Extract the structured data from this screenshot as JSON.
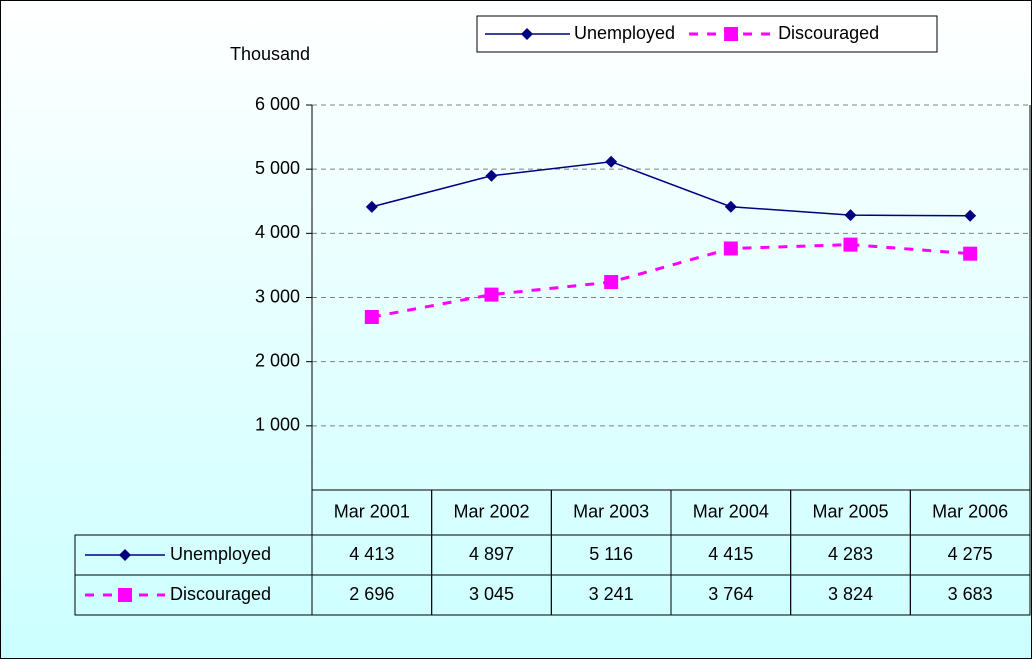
{
  "chart_data": {
    "type": "line",
    "y_label": "Thousand",
    "categories": [
      "Mar 2001",
      "Mar 2002",
      "Mar 2003",
      "Mar 2004",
      "Mar 2005",
      "Mar 2006"
    ],
    "series": [
      {
        "name": "Unemployed",
        "color": "#000080",
        "dashed": false,
        "marker": "diamond",
        "values": [
          4413,
          4897,
          5116,
          4415,
          4283,
          4275
        ],
        "value_labels": [
          "4 413",
          "4 897",
          "5 116",
          "4 415",
          "4 283",
          "4 275"
        ]
      },
      {
        "name": "Discouraged",
        "color": "#ff00ff",
        "dashed": true,
        "marker": "square",
        "values": [
          2696,
          3045,
          3241,
          3764,
          3824,
          3683
        ],
        "value_labels": [
          "2 696",
          "3 045",
          "3 241",
          "3 764",
          "3 824",
          "3 683"
        ]
      }
    ],
    "ylim": [
      0,
      6000
    ],
    "yticks": [
      {
        "value": 1000,
        "label": "1 000"
      },
      {
        "value": 2000,
        "label": "2 000"
      },
      {
        "value": 3000,
        "label": "3 000"
      },
      {
        "value": 4000,
        "label": "4 000"
      },
      {
        "value": 5000,
        "label": "5 000"
      },
      {
        "value": 6000,
        "label": "6 000"
      }
    ],
    "grid": true,
    "legend_position": "top",
    "data_table": true
  }
}
